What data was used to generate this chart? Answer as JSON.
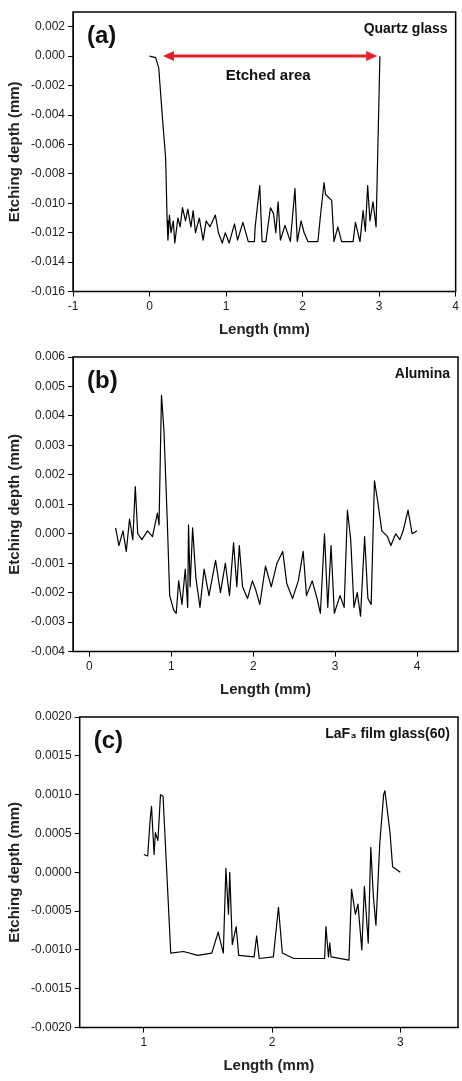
{
  "chart_data": [
    {
      "type": "line",
      "title": "Quartz glass",
      "xlabel": "Length (mm)",
      "ylabel": "Etching depth (mm)",
      "annotations": [
        "(a)",
        "Etched area"
      ],
      "color": "#000000",
      "xlim": [
        -1,
        4
      ],
      "ylim": [
        -0.016,
        0.003
      ],
      "xticks": [
        -1,
        0,
        1,
        2,
        3,
        4
      ],
      "yticks": [
        {
          "value": -0.016,
          "label": "-0.016"
        },
        {
          "value": -0.014,
          "label": "-0.014"
        },
        {
          "value": -0.012,
          "label": "-0.012"
        },
        {
          "value": -0.01,
          "label": "-0.010"
        },
        {
          "value": -0.008,
          "label": "-0.008"
        },
        {
          "value": -0.006,
          "label": "-0.006"
        },
        {
          "value": -0.004,
          "label": "-0.004"
        },
        {
          "value": -0.002,
          "label": "-0.002"
        },
        {
          "value": 0,
          "label": "0.000"
        },
        {
          "value": 0.002,
          "label": "0.002"
        }
      ],
      "x": [
        0,
        0.08,
        0.12,
        0.17,
        0.21,
        0.23,
        0.24,
        0.26,
        0.28,
        0.31,
        0.33,
        0.37,
        0.4,
        0.43,
        0.47,
        0.5,
        0.54,
        0.57,
        0.6,
        0.65,
        0.7,
        0.74,
        0.79,
        0.86,
        0.9,
        0.95,
        0.99,
        1.04,
        1.11,
        1.15,
        1.22,
        1.29,
        1.37,
        1.38,
        1.44,
        1.47,
        1.52,
        1.58,
        1.62,
        1.65,
        1.68,
        1.71,
        1.77,
        1.84,
        1.9,
        1.93,
        1.98,
        2.02,
        2.07,
        2.2,
        2.23,
        2.28,
        2.3,
        2.38,
        2.41,
        2.46,
        2.51,
        2.66,
        2.69,
        2.75,
        2.79,
        2.82,
        2.85,
        2.88,
        2.92,
        2.96,
        2.99,
        3.01
      ],
      "values": [
        0,
        -0.0001,
        -0.0008,
        -0.0043,
        -0.0069,
        -0.0112,
        -0.0125,
        -0.0108,
        -0.012,
        -0.0112,
        -0.0127,
        -0.011,
        -0.0116,
        -0.0103,
        -0.0112,
        -0.0104,
        -0.0116,
        -0.0105,
        -0.012,
        -0.011,
        -0.0125,
        -0.0112,
        -0.0116,
        -0.0108,
        -0.012,
        -0.0127,
        -0.012,
        -0.0127,
        -0.0114,
        -0.0125,
        -0.0113,
        -0.0126,
        -0.0126,
        -0.0116,
        -0.0088,
        -0.0126,
        -0.0126,
        -0.0103,
        -0.0107,
        -0.012,
        -0.0099,
        -0.0125,
        -0.0115,
        -0.0126,
        -0.009,
        -0.0126,
        -0.0112,
        -0.012,
        -0.0126,
        -0.0126,
        -0.011,
        -0.0086,
        -0.0094,
        -0.0098,
        -0.0126,
        -0.0116,
        -0.0126,
        -0.0126,
        -0.0113,
        -0.0126,
        -0.0105,
        -0.0119,
        -0.0088,
        -0.0112,
        -0.0099,
        -0.0116,
        -0.0047,
        0
      ]
    },
    {
      "type": "line",
      "title": "Alumina",
      "xlabel": "Length (mm)",
      "ylabel": "Etching depth (mm)",
      "annotations": [
        "(b)"
      ],
      "color": "#000000",
      "xlim": [
        -0.2,
        4.5
      ],
      "ylim": [
        -0.004,
        0.006
      ],
      "xticks": [
        0,
        1,
        2,
        3,
        4
      ],
      "yticks": [
        {
          "value": -0.004,
          "label": "-0.004"
        },
        {
          "value": -0.003,
          "label": "-0.003"
        },
        {
          "value": -0.002,
          "label": "-0.002"
        },
        {
          "value": -0.001,
          "label": "-0.001"
        },
        {
          "value": 0,
          "label": "0.000"
        },
        {
          "value": 0.001,
          "label": "0.001"
        },
        {
          "value": 0.002,
          "label": "0.002"
        },
        {
          "value": 0.003,
          "label": "0.003"
        },
        {
          "value": 0.004,
          "label": "0.004"
        },
        {
          "value": 0.005,
          "label": "0.005"
        },
        {
          "value": 0.006,
          "label": "0.006"
        }
      ],
      "x": [
        0.32,
        0.36,
        0.41,
        0.45,
        0.49,
        0.53,
        0.56,
        0.59,
        0.64,
        0.71,
        0.77,
        0.83,
        0.85,
        0.88,
        0.91,
        0.95,
        0.98,
        1.03,
        1.06,
        1.09,
        1.13,
        1.17,
        1.2,
        1.21,
        1.23,
        1.26,
        1.3,
        1.35,
        1.4,
        1.46,
        1.54,
        1.6,
        1.66,
        1.71,
        1.76,
        1.8,
        1.83,
        1.87,
        1.93,
        1.99,
        2.03,
        2.08,
        2.15,
        2.22,
        2.29,
        2.36,
        2.41,
        2.48,
        2.55,
        2.61,
        2.65,
        2.72,
        2.78,
        2.82,
        2.87,
        2.91,
        2.95,
        2.99,
        3.06,
        3.11,
        3.15,
        3.19,
        3.23,
        3.27,
        3.31,
        3.36,
        3.4,
        3.44,
        3.48,
        3.52,
        3.57,
        3.64,
        3.68,
        3.74,
        3.79,
        3.83,
        3.89,
        3.94,
        4
      ],
      "values": [
        0.0002,
        -0.0004,
        0.0001,
        -0.0006,
        0.0005,
        -0.0002,
        0.0016,
        0,
        -0.0002,
        0.0001,
        -0.0001,
        0.0007,
        0.0003,
        0.0047,
        0.0035,
        0.0005,
        -0.0021,
        -0.0026,
        -0.0027,
        -0.0016,
        -0.0024,
        -0.0012,
        -0.0025,
        0.0003,
        -0.0018,
        0.0002,
        -0.0015,
        -0.0025,
        -0.0012,
        -0.0021,
        -0.0009,
        -0.002,
        -0.001,
        -0.0021,
        -0.0003,
        -0.0018,
        -0.0004,
        -0.0018,
        -0.0022,
        -0.0016,
        -0.0019,
        -0.0024,
        -0.0011,
        -0.0018,
        -0.001,
        -0.0006,
        -0.0017,
        -0.0022,
        -0.0016,
        -0.0006,
        -0.0021,
        -0.0016,
        -0.0022,
        -0.0027,
        0,
        -0.0025,
        -0.0004,
        -0.0027,
        -0.0021,
        -0.0025,
        0.0008,
        -0.0002,
        -0.0025,
        -0.002,
        -0.0028,
        -0.0001,
        -0.0022,
        -0.0024,
        0.0018,
        0.0011,
        0.0001,
        -0.0001,
        -0.0004,
        0,
        -0.0002,
        0.0001,
        0.0008,
        0,
        0.0001
      ]
    },
    {
      "type": "line",
      "title": "LaF₃ film glass(60)",
      "xlabel": "Length (mm)",
      "ylabel": "Etching depth (mm)",
      "annotations": [
        "(c)"
      ],
      "color": "#000000",
      "xlim": [
        0.5,
        3.45
      ],
      "ylim": [
        -0.002,
        0.002
      ],
      "xticks": [
        1,
        2,
        3
      ],
      "yticks": [
        {
          "value": -0.002,
          "label": "-0.0020"
        },
        {
          "value": -0.0015,
          "label": "-0.0015"
        },
        {
          "value": -0.001,
          "label": "-0.0010"
        },
        {
          "value": -0.0005,
          "label": "-0.0005"
        },
        {
          "value": 0,
          "label": "0.0000"
        },
        {
          "value": 0.0005,
          "label": "0.0005"
        },
        {
          "value": 0.001,
          "label": "0.0010"
        },
        {
          "value": 0.0015,
          "label": "0.0015"
        },
        {
          "value": 0.002,
          "label": "0.0020"
        }
      ],
      "x": [
        1,
        1.03,
        1.05,
        1.06,
        1.08,
        1.09,
        1.11,
        1.13,
        1.15,
        1.21,
        1.31,
        1.42,
        1.53,
        1.58,
        1.62,
        1.64,
        1.66,
        1.67,
        1.69,
        1.72,
        1.74,
        1.86,
        1.88,
        1.9,
        2.01,
        2.05,
        2.08,
        2.17,
        2.41,
        2.42,
        2.44,
        2.45,
        2.46,
        2.6,
        2.62,
        2.65,
        2.67,
        2.7,
        2.72,
        2.75,
        2.77,
        2.79,
        2.81,
        2.84,
        2.87,
        2.88,
        2.92,
        2.94,
        3
      ],
      "values": [
        0.00023,
        0.00021,
        0.00069,
        0.00085,
        0.00023,
        0.00051,
        0.00041,
        0.001,
        0.00098,
        -0.00104,
        -0.00102,
        -0.00107,
        -0.00104,
        -0.00077,
        -0.00104,
        5e-05,
        -0.00054,
        0,
        -0.00093,
        -0.0007,
        -0.00107,
        -0.00109,
        -0.00082,
        -0.00111,
        -0.00109,
        -0.00045,
        -0.00104,
        -0.00111,
        -0.00111,
        -0.0007,
        -0.00109,
        -0.00091,
        -0.00109,
        -0.00113,
        -0.00022,
        -0.00054,
        -0.00041,
        -0.001,
        -0.00018,
        -0.00091,
        0.00032,
        -0.00031,
        -0.00068,
        0.00037,
        0.001,
        0.00105,
        0.00051,
        7e-05,
        0
      ]
    }
  ]
}
